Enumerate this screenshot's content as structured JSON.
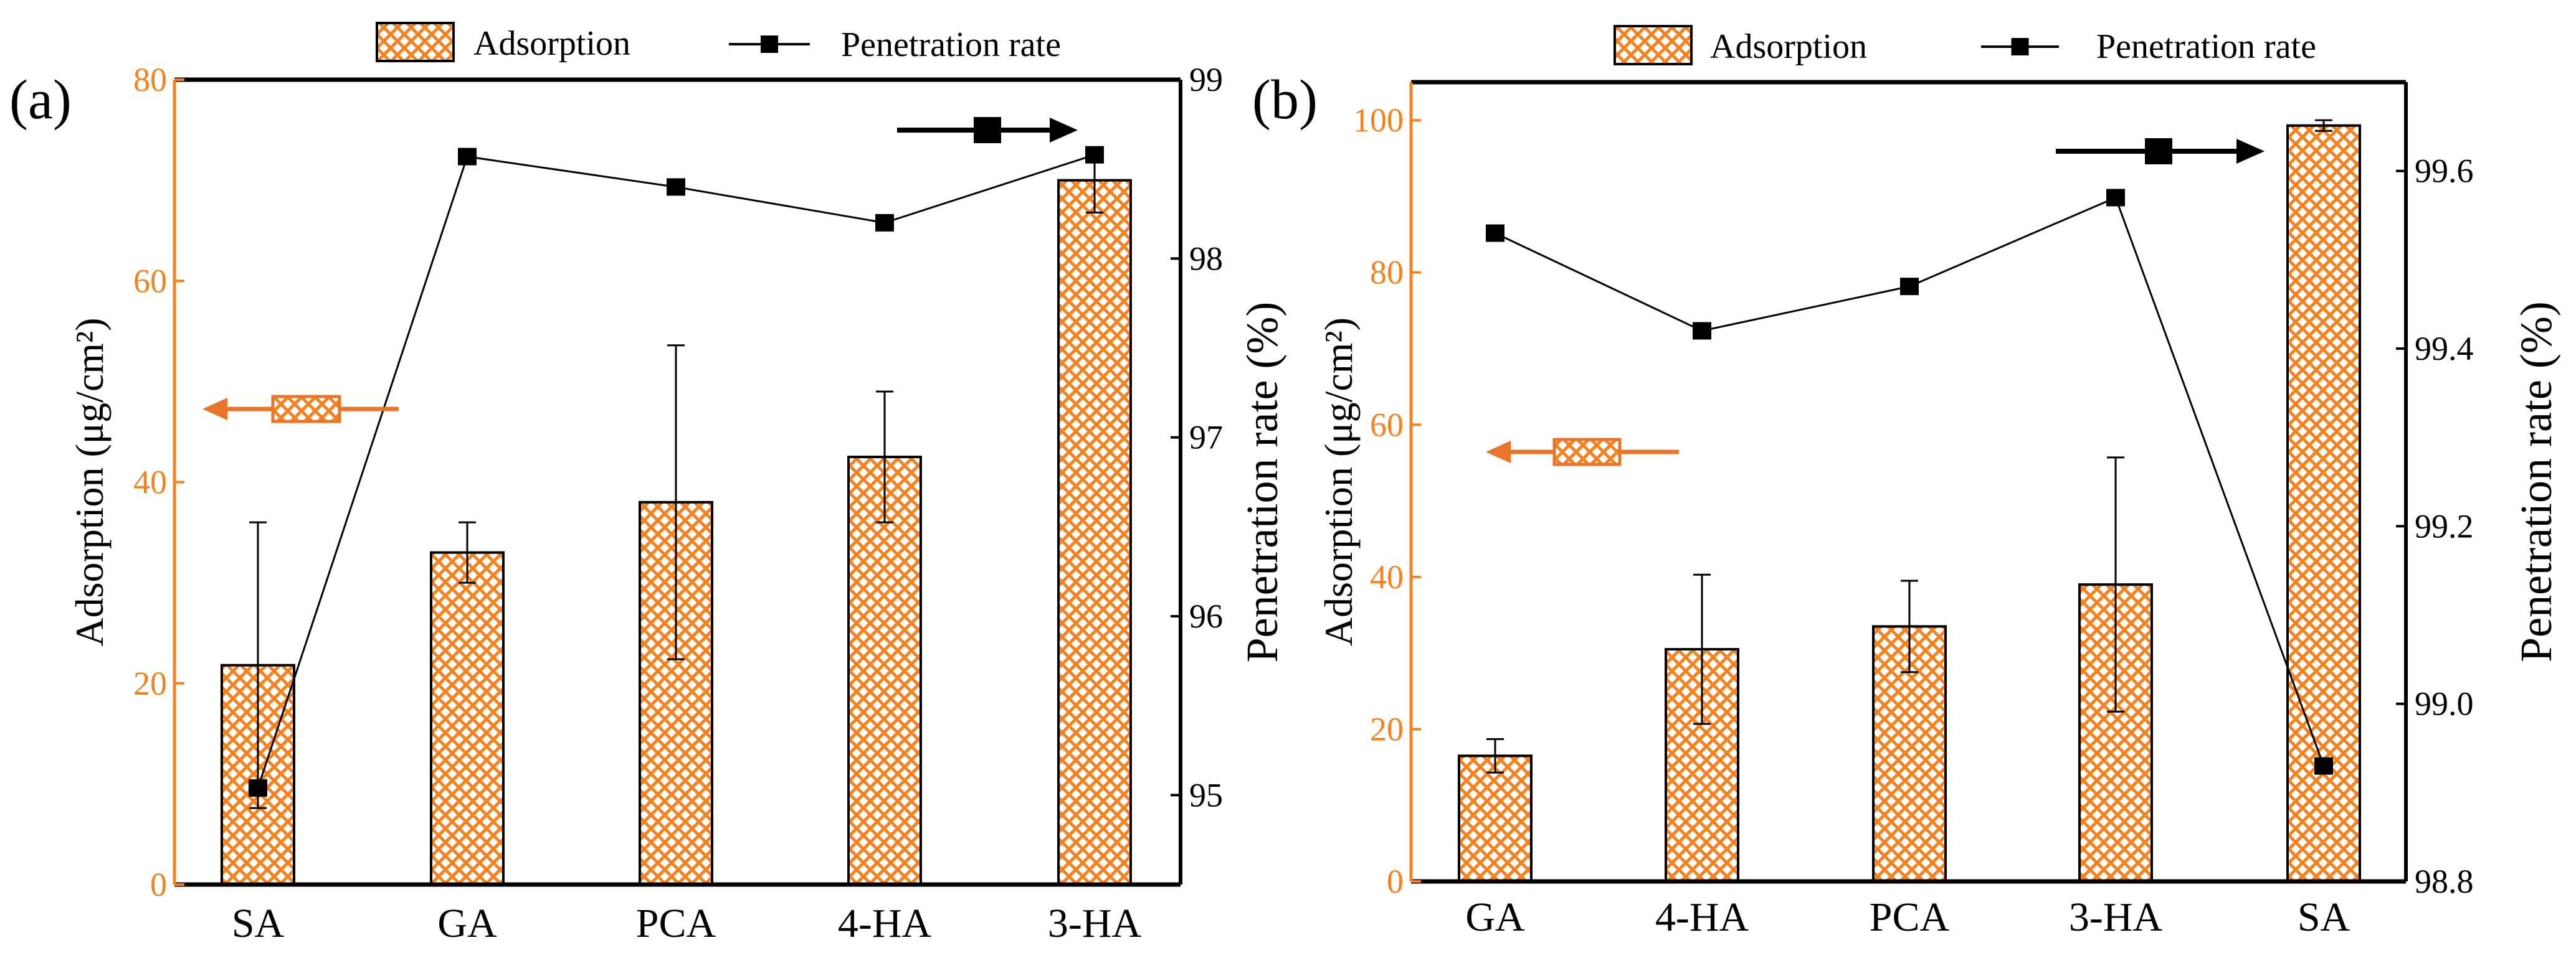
{
  "colors": {
    "bar": "#F5821F",
    "tick_left": "#F5821F",
    "line": "#000000",
    "frame": "#000000"
  },
  "chart_data": [
    {
      "type": "bar",
      "panel_label": "(a)",
      "categories": [
        "SA",
        "GA",
        "PCA",
        "4-HA",
        "3-HA"
      ],
      "series": [
        {
          "name": "Adsorption",
          "type": "bar",
          "axis": "left",
          "values": [
            21.8,
            33.0,
            38.0,
            42.5,
            70.0
          ],
          "error": [
            14.2,
            3.0,
            15.6,
            6.5,
            3.2
          ]
        },
        {
          "name": "Penetration rate",
          "type": "line",
          "axis": "right",
          "values": [
            95.04,
            98.57,
            98.4,
            98.2,
            98.58
          ]
        }
      ],
      "ylabel": "Adsorption (μg/cm²)",
      "y2label": "Penetration rate (%)",
      "ylim": [
        0,
        80
      ],
      "yticks": [
        "0",
        "20",
        "40",
        "60",
        "80"
      ],
      "y2lim": [
        94.5,
        99
      ],
      "y2ticks": [
        "95",
        "96",
        "97",
        "98",
        "99"
      ],
      "legend": {
        "placement": "top-center",
        "entries": [
          "Adsorption",
          "Penetration rate"
        ]
      }
    },
    {
      "type": "bar",
      "panel_label": "(b)",
      "categories": [
        "GA",
        "4-HA",
        "PCA",
        "3-HA",
        "SA"
      ],
      "series": [
        {
          "name": "Adsorption",
          "type": "bar",
          "axis": "left",
          "values": [
            16.5,
            30.5,
            33.5,
            39.0,
            99.3
          ],
          "error": [
            2.2,
            9.8,
            6.0,
            16.7,
            0.7
          ]
        },
        {
          "name": "Penetration rate",
          "type": "line",
          "axis": "right",
          "values": [
            99.53,
            99.42,
            99.47,
            99.57,
            98.93
          ]
        }
      ],
      "ylabel": "Adsorption (μg/cm²)",
      "y2label": "Penetration rate (%)",
      "ylim": [
        0,
        105
      ],
      "yticks": [
        "0",
        "20",
        "40",
        "60",
        "80",
        "100"
      ],
      "y2lim": [
        98.8,
        99.7
      ],
      "y2ticks": [
        "98.8",
        "99.0",
        "99.2",
        "99.4",
        "99.6"
      ],
      "legend": {
        "placement": "top-center",
        "entries": [
          "Adsorption",
          "Penetration rate"
        ]
      }
    }
  ]
}
